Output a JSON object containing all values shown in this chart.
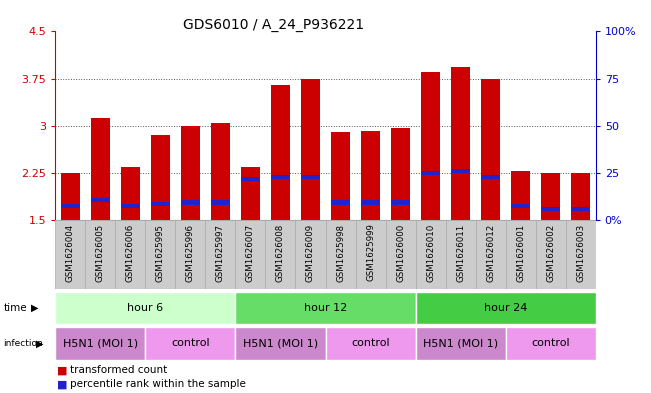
{
  "title": "GDS6010 / A_24_P936221",
  "samples": [
    "GSM1626004",
    "GSM1626005",
    "GSM1626006",
    "GSM1625995",
    "GSM1625996",
    "GSM1625997",
    "GSM1626007",
    "GSM1626008",
    "GSM1626009",
    "GSM1625998",
    "GSM1625999",
    "GSM1626000",
    "GSM1626010",
    "GSM1626011",
    "GSM1626012",
    "GSM1626001",
    "GSM1626002",
    "GSM1626003"
  ],
  "bar_values": [
    2.25,
    3.12,
    2.35,
    2.85,
    3.0,
    3.05,
    2.35,
    3.65,
    3.75,
    2.9,
    2.92,
    2.97,
    3.85,
    3.93,
    3.75,
    2.28,
    2.25,
    2.25
  ],
  "blue_marker_values": [
    1.73,
    1.82,
    1.72,
    1.75,
    1.78,
    1.78,
    2.15,
    2.18,
    2.18,
    1.78,
    1.78,
    1.78,
    2.25,
    2.28,
    2.18,
    1.72,
    1.68,
    1.68
  ],
  "ymin": 1.5,
  "ymax": 4.5,
  "yticks": [
    1.5,
    2.25,
    3.0,
    3.75,
    4.5
  ],
  "ytick_labels": [
    "1.5",
    "2.25",
    "3",
    "3.75",
    "4.5"
  ],
  "right_yticks": [
    0,
    25,
    50,
    75,
    100
  ],
  "right_ytick_labels": [
    "0%",
    "25",
    "50",
    "75",
    "100%"
  ],
  "bar_color": "#cc0000",
  "blue_color": "#2222cc",
  "bar_width": 0.65,
  "time_groups": [
    {
      "label": "hour 6",
      "start": 0,
      "end": 5,
      "color": "#ccffcc"
    },
    {
      "label": "hour 12",
      "start": 6,
      "end": 11,
      "color": "#66dd66"
    },
    {
      "label": "hour 24",
      "start": 12,
      "end": 17,
      "color": "#44cc44"
    }
  ],
  "infection_groups": [
    {
      "label": "H5N1 (MOI 1)",
      "start": 0,
      "end": 2,
      "color": "#cc88cc"
    },
    {
      "label": "control",
      "start": 3,
      "end": 5,
      "color": "#ee99ee"
    },
    {
      "label": "H5N1 (MOI 1)",
      "start": 6,
      "end": 8,
      "color": "#cc88cc"
    },
    {
      "label": "control",
      "start": 9,
      "end": 11,
      "color": "#ee99ee"
    },
    {
      "label": "H5N1 (MOI 1)",
      "start": 12,
      "end": 14,
      "color": "#cc88cc"
    },
    {
      "label": "control",
      "start": 15,
      "end": 17,
      "color": "#ee99ee"
    }
  ],
  "bg_color": "#ffffff",
  "tick_label_color_left": "#cc0000",
  "tick_label_color_right": "#0000cc",
  "sample_box_color": "#cccccc",
  "sample_box_edge": "#aaaaaa"
}
